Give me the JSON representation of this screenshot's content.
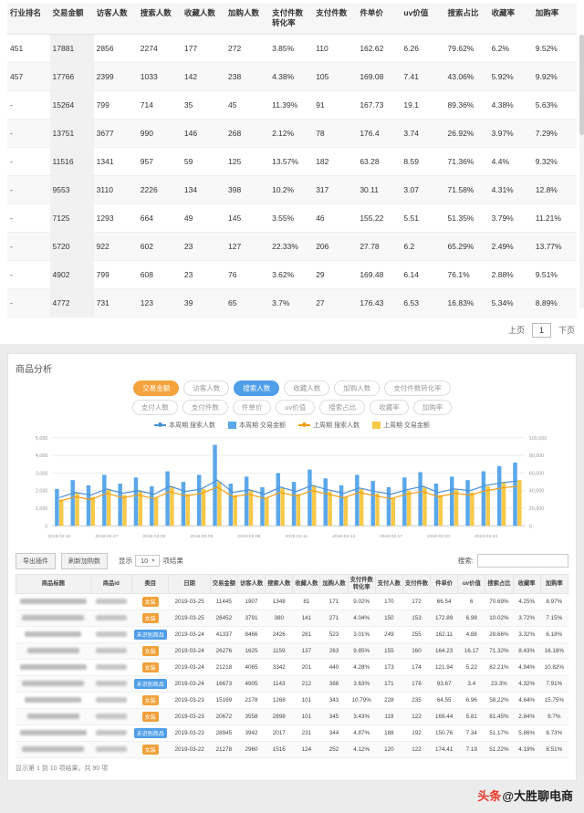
{
  "colors": {
    "accent_orange": "#f5a33c",
    "accent_blue": "#4f9ee8",
    "bar_blue": "#5aa7ea",
    "bar_yellow": "#f7c948",
    "line_orange": "#f39c12",
    "line_blue": "#4a90d9"
  },
  "top_table": {
    "columns": [
      "行业排名",
      "交易金额",
      "访客人数",
      "搜索人数",
      "收藏人数",
      "加购人数",
      "支付件数转化率",
      "支付件数",
      "件单价",
      "uv价值",
      "搜索占比",
      "收藏率",
      "加购率"
    ],
    "rows": [
      [
        "451",
        "17881",
        "2856",
        "2274",
        "177",
        "272",
        "3.85%",
        "110",
        "162.62",
        "6.26",
        "79.62%",
        "6.2%",
        "9.52%"
      ],
      [
        "457",
        "17766",
        "2399",
        "1033",
        "142",
        "238",
        "4.38%",
        "105",
        "169.08",
        "7.41",
        "43.06%",
        "5.92%",
        "9.92%"
      ],
      [
        "-",
        "15264",
        "799",
        "714",
        "35",
        "45",
        "11.39%",
        "91",
        "167.73",
        "19.1",
        "89.36%",
        "4.38%",
        "5.63%"
      ],
      [
        "-",
        "13751",
        "3677",
        "990",
        "146",
        "268",
        "2.12%",
        "78",
        "176.4",
        "3.74",
        "26.92%",
        "3.97%",
        "7.29%"
      ],
      [
        "-",
        "11516",
        "1341",
        "957",
        "59",
        "125",
        "13.57%",
        "182",
        "63.28",
        "8.59",
        "71.36%",
        "4.4%",
        "9.32%"
      ],
      [
        "-",
        "9553",
        "3110",
        "2226",
        "134",
        "398",
        "10.2%",
        "317",
        "30.11",
        "3.07",
        "71.58%",
        "4.31%",
        "12.8%"
      ],
      [
        "-",
        "7125",
        "1293",
        "664",
        "49",
        "145",
        "3.55%",
        "46",
        "155.22",
        "5.51",
        "51.35%",
        "3.79%",
        "11.21%"
      ],
      [
        "-",
        "5720",
        "922",
        "602",
        "23",
        "127",
        "22.33%",
        "206",
        "27.78",
        "6.2",
        "65.29%",
        "2.49%",
        "13.77%"
      ],
      [
        "-",
        "4902",
        "799",
        "608",
        "23",
        "76",
        "3.62%",
        "29",
        "169.48",
        "6.14",
        "76.1%",
        "2.88%",
        "9.51%"
      ],
      [
        "-",
        "4772",
        "731",
        "123",
        "39",
        "65",
        "3.7%",
        "27",
        "176.43",
        "6.53",
        "16.83%",
        "5.34%",
        "8.89%"
      ]
    ],
    "pagination": {
      "prev": "上页",
      "page": "1",
      "next": "下页"
    }
  },
  "panel": {
    "title": "商品分析",
    "tags_row1": [
      {
        "label": "交易金额",
        "state": "orange"
      },
      {
        "label": "访客人数",
        "state": "off"
      },
      {
        "label": "搜索人数",
        "state": "blue"
      },
      {
        "label": "收藏人数",
        "state": "off"
      },
      {
        "label": "加购人数",
        "state": "off"
      },
      {
        "label": "支付件数转化率",
        "state": "off"
      }
    ],
    "tags_row2": [
      {
        "label": "支付人数",
        "state": "off"
      },
      {
        "label": "支付件数",
        "state": "off"
      },
      {
        "label": "件单价",
        "state": "off"
      },
      {
        "label": "uv价值",
        "state": "off"
      },
      {
        "label": "搜索占比",
        "state": "off"
      },
      {
        "label": "收藏率",
        "state": "off"
      },
      {
        "label": "加购率",
        "state": "off"
      }
    ],
    "legend": [
      {
        "label": "本周期 搜索人数",
        "type": "line",
        "color": "#4a90d9"
      },
      {
        "label": "本周期 交易金额",
        "type": "bar",
        "color": "#5aa7ea"
      },
      {
        "label": "上周期 搜索人数",
        "type": "line",
        "color": "#f39c12"
      },
      {
        "label": "上周期 交易金额",
        "type": "bar",
        "color": "#f7c948"
      }
    ]
  },
  "chart_data": {
    "type": "bar+line",
    "title": "商品分析",
    "grid": true,
    "legend_position": "top",
    "x_tick_every": 3,
    "x": [
      "2019-02-24",
      "2019-02-25",
      "2019-02-26",
      "2019-02-27",
      "2019-02-28",
      "2019-03-01",
      "2019-03-02",
      "2019-03-03",
      "2019-03-04",
      "2019-03-05",
      "2019-03-06",
      "2019-03-07",
      "2019-03-08",
      "2019-03-09",
      "2019-03-10",
      "2019-03-11",
      "2019-03-12",
      "2019-03-13",
      "2019-03-14",
      "2019-03-15",
      "2019-03-16",
      "2019-03-17",
      "2019-03-18",
      "2019-03-19",
      "2019-03-20",
      "2019-03-21",
      "2019-03-22",
      "2019-03-23",
      "2019-03-24",
      "2019-03-25"
    ],
    "left_axis": {
      "min": 0,
      "max": 5000,
      "ticks": [
        "0",
        "1,000",
        "2,000",
        "3,000",
        "4,000",
        "5,000"
      ]
    },
    "right_axis": {
      "min": 0,
      "max": 100000,
      "ticks": [
        "0",
        "20,000",
        "40,000",
        "60,000",
        "80,000",
        "100,000"
      ]
    },
    "series": [
      {
        "name": "本周期 交易金额",
        "type": "bar",
        "axis": "right",
        "color": "#5aa7ea",
        "values": [
          42000,
          52000,
          46000,
          58000,
          48000,
          55000,
          45000,
          62000,
          50000,
          58000,
          92000,
          48000,
          56000,
          44000,
          60000,
          50000,
          64000,
          54000,
          46000,
          58000,
          51000,
          44000,
          55000,
          61000,
          48000,
          56000,
          52000,
          62000,
          68000,
          72000
        ]
      },
      {
        "name": "上周期 交易金额",
        "type": "bar",
        "axis": "right",
        "color": "#f7c948",
        "values": [
          30000,
          38000,
          33000,
          42000,
          35000,
          40000,
          32000,
          45000,
          36000,
          42000,
          50000,
          35000,
          40000,
          32000,
          43000,
          36000,
          46000,
          39000,
          33000,
          42000,
          37000,
          32000,
          40000,
          44000,
          35000,
          41000,
          38000,
          45000,
          49000,
          52000
        ]
      },
      {
        "name": "本周期 搜索人数",
        "type": "line",
        "axis": "left",
        "color": "#4a90d9",
        "values": [
          1600,
          1900,
          1750,
          2100,
          1850,
          2000,
          1800,
          2250,
          1950,
          2100,
          2600,
          1900,
          2050,
          1800,
          2200,
          1950,
          2300,
          2050,
          1850,
          2150,
          1950,
          1800,
          2050,
          2250,
          1900,
          2100,
          2000,
          2300,
          2450,
          2550
        ]
      },
      {
        "name": "上周期 搜索人数",
        "type": "line",
        "axis": "left",
        "color": "#f39c12",
        "values": [
          1400,
          1650,
          1500,
          1850,
          1600,
          1750,
          1550,
          1950,
          1700,
          1850,
          2200,
          1650,
          1800,
          1550,
          1900,
          1700,
          2000,
          1800,
          1600,
          1900,
          1700,
          1550,
          1800,
          1950,
          1650,
          1850,
          1750,
          2000,
          2150,
          2250
        ]
      }
    ]
  },
  "toolbar": {
    "buttons": [
      "导出插件",
      "刷新加购数"
    ],
    "page_size_prefix": "显示",
    "page_size": "10",
    "page_size_suffix": "项结果",
    "search_label": "搜索:"
  },
  "bottom_table": {
    "columns": [
      "商品标题",
      "商品id",
      "类目",
      "日期",
      "交易金额",
      "访客人数",
      "搜索人数",
      "收藏人数",
      "加购人数",
      "支付件数转化率",
      "支付人数",
      "支付件数",
      "件单价",
      "uv价值",
      "搜索占比",
      "收藏率",
      "加购率"
    ],
    "rows": [
      {
        "badge": "女装",
        "badge_color": "orange",
        "cells": [
          "2019-03-25",
          "11445",
          "1907",
          "1348",
          "81",
          "171",
          "9.02%",
          "170",
          "172",
          "66.54",
          "6",
          "70.69%",
          "4.25%",
          "8.97%"
        ]
      },
      {
        "badge": "女装",
        "badge_color": "orange",
        "cells": [
          "2019-03-25",
          "26452",
          "3791",
          "380",
          "141",
          "271",
          "4.04%",
          "150",
          "153",
          "172.89",
          "6.98",
          "10.02%",
          "3.72%",
          "7.15%"
        ]
      },
      {
        "badge": "未识别商品",
        "badge_color": "blue",
        "cells": [
          "2019-03-24",
          "41337",
          "8466",
          "2426",
          "281",
          "523",
          "3.01%",
          "249",
          "255",
          "162.11",
          "4.88",
          "28.66%",
          "3.32%",
          "6.18%"
        ]
      },
      {
        "badge": "女装",
        "badge_color": "orange",
        "cells": [
          "2019-03-24",
          "26276",
          "1625",
          "1159",
          "137",
          "263",
          "9.85%",
          "155",
          "160",
          "164.23",
          "16.17",
          "71.32%",
          "8.43%",
          "16.18%"
        ]
      },
      {
        "badge": "女装",
        "badge_color": "orange",
        "cells": [
          "2019-03-24",
          "21218",
          "4065",
          "3342",
          "201",
          "440",
          "4.28%",
          "173",
          "174",
          "121.94",
          "5.22",
          "82.21%",
          "4.94%",
          "10.82%"
        ]
      },
      {
        "badge": "未识别商品",
        "badge_color": "blue",
        "cells": [
          "2019-03-24",
          "16673",
          "4905",
          "1143",
          "212",
          "388",
          "3.63%",
          "171",
          "178",
          "93.67",
          "3.4",
          "23.3%",
          "4.32%",
          "7.91%"
        ]
      },
      {
        "badge": "女装",
        "badge_color": "orange",
        "cells": [
          "2019-03-23",
          "15169",
          "2178",
          "1268",
          "101",
          "343",
          "10.79%",
          "228",
          "235",
          "64.55",
          "6.96",
          "58.22%",
          "4.64%",
          "15.75%"
        ]
      },
      {
        "badge": "女装",
        "badge_color": "orange",
        "cells": [
          "2019-03-23",
          "20672",
          "3558",
          "2898",
          "101",
          "345",
          "3.43%",
          "119",
          "122",
          "169.44",
          "5.81",
          "81.45%",
          "2.84%",
          "9.7%"
        ]
      },
      {
        "badge": "未识别商品",
        "badge_color": "blue",
        "cells": [
          "2019-03-23",
          "28945",
          "3942",
          "2017",
          "231",
          "344",
          "4.87%",
          "188",
          "192",
          "150.76",
          "7.34",
          "51.17%",
          "5.86%",
          "8.73%"
        ]
      },
      {
        "badge": "女装",
        "badge_color": "orange",
        "cells": [
          "2019-03-22",
          "21278",
          "2960",
          "1516",
          "124",
          "252",
          "4.12%",
          "120",
          "122",
          "174.41",
          "7.19",
          "51.22%",
          "4.19%",
          "8.51%"
        ]
      }
    ]
  },
  "footer": {
    "summary": "显示第 1 到 10 项结果，共 90 项"
  },
  "watermark": {
    "brand": "头条",
    "handle": "@大胜聊电商"
  }
}
